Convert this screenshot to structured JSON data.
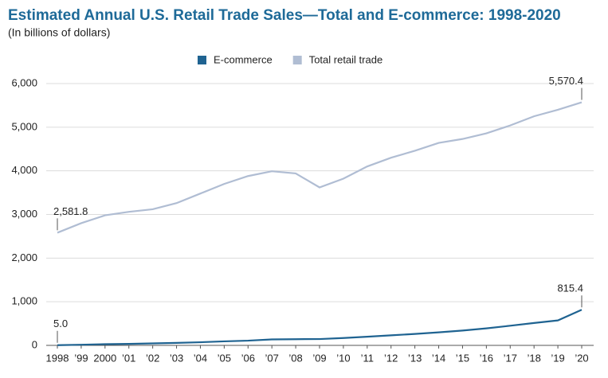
{
  "chart_data": {
    "type": "line",
    "title": "Estimated Annual U.S. Retail Trade Sales—Total and E-commerce: 1998-2020",
    "subtitle": "(In billions of dollars)",
    "categories": [
      "1998",
      "’99",
      "2000",
      "’01",
      "’02",
      "’03",
      "’04",
      "’05",
      "’06",
      "’07",
      "’08",
      "’09",
      "’10",
      "’11",
      "’12",
      "’13",
      "’14",
      "’15",
      "’16",
      "’17",
      "’18",
      "’19",
      "’20"
    ],
    "series": [
      {
        "name": "E-commerce",
        "color": "#1f6391",
        "values": [
          5.0,
          15,
          28,
          34,
          45,
          57,
          72,
          92,
          108,
          137,
          142,
          145,
          169,
          198,
          230,
          262,
          298,
          340,
          390,
          450,
          513,
          572,
          815.4
        ],
        "value_labels": [
          "5.0",
          null,
          null,
          null,
          null,
          null,
          null,
          null,
          null,
          null,
          null,
          null,
          null,
          null,
          null,
          null,
          null,
          null,
          null,
          null,
          null,
          null,
          "815.4"
        ]
      },
      {
        "name": "Total retail trade",
        "color": "#b0bdd3",
        "values": [
          2581.8,
          2800,
          2980,
          3060,
          3120,
          3260,
          3480,
          3700,
          3880,
          3990,
          3940,
          3620,
          3820,
          4100,
          4300,
          4460,
          4640,
          4730,
          4860,
          5040,
          5250,
          5400,
          5570.4
        ],
        "value_labels": [
          "2,581.8",
          null,
          null,
          null,
          null,
          null,
          null,
          null,
          null,
          null,
          null,
          null,
          null,
          null,
          null,
          null,
          null,
          null,
          null,
          null,
          null,
          null,
          "5,570.4"
        ]
      }
    ],
    "ylim": [
      0,
      6000
    ],
    "yticks": [
      0,
      {
        "value": 1000,
        "label": "1,000"
      },
      {
        "value": 2000,
        "label": "2,000"
      },
      {
        "value": 3000,
        "label": "3,000"
      },
      {
        "value": 4000,
        "label": "4,000"
      },
      {
        "value": 5000,
        "label": "5,000"
      },
      {
        "value": 6000,
        "label": "6,000"
      }
    ],
    "grid": true
  }
}
